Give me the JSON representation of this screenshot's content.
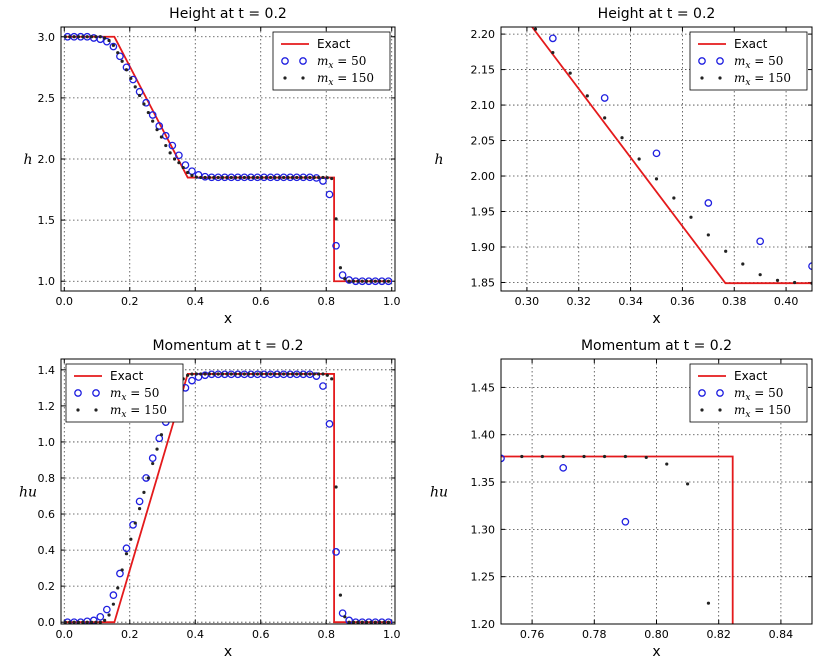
{
  "chart_data": [
    {
      "id": "height-full",
      "type": "line",
      "title": "Height at t = 0.2",
      "xlabel": "x",
      "ylabel": "h",
      "xlim": [
        -0.01,
        1.01
      ],
      "ylim": [
        0.92,
        3.08
      ],
      "xticks": [
        0.0,
        0.2,
        0.4,
        0.6,
        0.8,
        1.0
      ],
      "yticks": [
        1.0,
        1.5,
        2.0,
        2.5,
        3.0
      ],
      "xtick_decimals": 1,
      "ytick_decimals": 1,
      "grid": true,
      "legend_position": "top-right",
      "series": [
        {
          "name": "Exact",
          "style": "line",
          "color": "#e41a1c",
          "x": [
            0.0,
            0.153,
            0.377,
            0.824,
            0.824,
            1.0
          ],
          "y": [
            3.0,
            3.0,
            1.848,
            1.848,
            1.0,
            1.0
          ]
        },
        {
          "name": "m_x = 50",
          "style": "circle",
          "color": "#1f1fe0",
          "x": [
            0.01,
            0.03,
            0.05,
            0.07,
            0.09,
            0.11,
            0.13,
            0.15,
            0.17,
            0.19,
            0.21,
            0.23,
            0.25,
            0.27,
            0.29,
            0.31,
            0.33,
            0.35,
            0.37,
            0.39,
            0.41,
            0.43,
            0.45,
            0.47,
            0.49,
            0.51,
            0.53,
            0.55,
            0.57,
            0.59,
            0.61,
            0.63,
            0.65,
            0.67,
            0.69,
            0.71,
            0.73,
            0.75,
            0.77,
            0.79,
            0.81,
            0.83,
            0.85,
            0.87,
            0.89,
            0.91,
            0.93,
            0.95,
            0.97,
            0.99
          ],
          "y": [
            3.0,
            3.0,
            3.0,
            3.0,
            2.99,
            2.98,
            2.96,
            2.92,
            2.84,
            2.75,
            2.65,
            2.55,
            2.46,
            2.36,
            2.27,
            2.19,
            2.11,
            2.03,
            1.95,
            1.9,
            1.87,
            1.855,
            1.85,
            1.85,
            1.85,
            1.85,
            1.85,
            1.85,
            1.85,
            1.85,
            1.85,
            1.85,
            1.85,
            1.85,
            1.85,
            1.85,
            1.85,
            1.85,
            1.845,
            1.82,
            1.71,
            1.29,
            1.05,
            1.01,
            1.0,
            1.0,
            1.0,
            1.0,
            1.0,
            1.0
          ]
        },
        {
          "name": "m_x = 150",
          "style": "dot",
          "color": "#222222",
          "x": [
            0.0033,
            0.0167,
            0.03,
            0.0433,
            0.0567,
            0.07,
            0.0833,
            0.0967,
            0.11,
            0.1233,
            0.1367,
            0.15,
            0.1633,
            0.1767,
            0.19,
            0.2033,
            0.2167,
            0.23,
            0.2433,
            0.2567,
            0.27,
            0.2833,
            0.2967,
            0.31,
            0.3233,
            0.3367,
            0.35,
            0.3633,
            0.3767,
            0.39,
            0.4033,
            0.4167,
            0.43,
            0.4433,
            0.4567,
            0.47,
            0.4833,
            0.4967,
            0.51,
            0.5233,
            0.5367,
            0.55,
            0.5633,
            0.5767,
            0.59,
            0.6033,
            0.6167,
            0.63,
            0.6433,
            0.6567,
            0.67,
            0.6833,
            0.6967,
            0.71,
            0.7233,
            0.7367,
            0.75,
            0.7633,
            0.7767,
            0.79,
            0.8033,
            0.8167,
            0.83,
            0.8433,
            0.8567,
            0.87,
            0.8833,
            0.8967,
            0.91,
            0.9233,
            0.9367,
            0.95,
            0.9633,
            0.9767,
            0.99
          ],
          "y": [
            3.0,
            3.0,
            3.0,
            3.0,
            3.0,
            3.0,
            3.0,
            3.0,
            3.0,
            2.99,
            2.97,
            2.93,
            2.87,
            2.8,
            2.73,
            2.66,
            2.59,
            2.52,
            2.45,
            2.38,
            2.31,
            2.24,
            2.18,
            2.11,
            2.05,
            2.0,
            1.97,
            1.93,
            1.89,
            1.865,
            1.852,
            1.849,
            1.849,
            1.849,
            1.849,
            1.849,
            1.849,
            1.849,
            1.849,
            1.849,
            1.849,
            1.849,
            1.849,
            1.849,
            1.849,
            1.849,
            1.849,
            1.849,
            1.849,
            1.849,
            1.849,
            1.849,
            1.849,
            1.849,
            1.849,
            1.849,
            1.849,
            1.849,
            1.849,
            1.849,
            1.847,
            1.84,
            1.51,
            1.11,
            1.02,
            1.0,
            1.0,
            1.0,
            1.0,
            1.0,
            1.0,
            1.0,
            1.0,
            1.0,
            1.0
          ]
        }
      ]
    },
    {
      "id": "height-zoom",
      "type": "line",
      "title": "Height at t = 0.2",
      "xlabel": "x",
      "ylabel": "h",
      "xlim": [
        0.29,
        0.41
      ],
      "ylim": [
        1.838,
        2.21
      ],
      "xticks": [
        0.3,
        0.32,
        0.34,
        0.36,
        0.38,
        0.4
      ],
      "yticks": [
        1.85,
        1.9,
        1.95,
        2.0,
        2.05,
        2.1,
        2.15,
        2.2
      ],
      "xtick_decimals": 2,
      "ytick_decimals": 2,
      "grid": true,
      "legend_position": "top-right",
      "series": [
        {
          "name": "Exact",
          "style": "line",
          "color": "#e41a1c",
          "x": [
            0.302,
            0.3766,
            0.41
          ],
          "y": [
            2.21,
            1.849,
            1.849
          ]
        },
        {
          "name": "m_x = 50",
          "style": "circle",
          "color": "#1f1fe0",
          "x": [
            0.31,
            0.33,
            0.35,
            0.37,
            0.39,
            0.41
          ],
          "y": [
            2.194,
            2.11,
            2.032,
            1.962,
            1.908,
            1.873
          ]
        },
        {
          "name": "m_x = 150",
          "style": "dot",
          "color": "#222222",
          "x": [
            0.3033,
            0.31,
            0.3167,
            0.3233,
            0.33,
            0.3367,
            0.3433,
            0.35,
            0.3567,
            0.3633,
            0.37,
            0.3767,
            0.3833,
            0.39,
            0.3967,
            0.4033,
            0.41
          ],
          "y": [
            2.207,
            2.174,
            2.145,
            2.113,
            2.082,
            2.054,
            2.024,
            1.996,
            1.969,
            1.942,
            1.917,
            1.894,
            1.876,
            1.861,
            1.853,
            1.85,
            1.849
          ]
        }
      ]
    },
    {
      "id": "momentum-full",
      "type": "line",
      "title": "Momentum at t = 0.2",
      "xlabel": "x",
      "ylabel": "hu",
      "xlim": [
        -0.01,
        1.01
      ],
      "ylim": [
        -0.01,
        1.46
      ],
      "xticks": [
        0.0,
        0.2,
        0.4,
        0.6,
        0.8,
        1.0
      ],
      "yticks": [
        0.0,
        0.2,
        0.4,
        0.6,
        0.8,
        1.0,
        1.2,
        1.4
      ],
      "xtick_decimals": 1,
      "ytick_decimals": 1,
      "grid": true,
      "legend_position": "top-left",
      "series": [
        {
          "name": "Exact",
          "style": "line",
          "color": "#e41a1c",
          "x": [
            0.0,
            0.153,
            0.377,
            0.824,
            0.824,
            1.0
          ],
          "y": [
            0.0,
            0.0,
            1.377,
            1.377,
            0.0,
            0.0
          ]
        },
        {
          "name": "m_x = 50",
          "style": "circle",
          "color": "#1f1fe0",
          "x": [
            0.01,
            0.03,
            0.05,
            0.07,
            0.09,
            0.11,
            0.13,
            0.15,
            0.17,
            0.19,
            0.21,
            0.23,
            0.25,
            0.27,
            0.29,
            0.31,
            0.33,
            0.35,
            0.37,
            0.39,
            0.41,
            0.43,
            0.45,
            0.47,
            0.49,
            0.51,
            0.53,
            0.55,
            0.57,
            0.59,
            0.61,
            0.63,
            0.65,
            0.67,
            0.69,
            0.71,
            0.73,
            0.75,
            0.77,
            0.79,
            0.81,
            0.83,
            0.85,
            0.87,
            0.89,
            0.91,
            0.93,
            0.95,
            0.97,
            0.99
          ],
          "y": [
            0.0,
            0.0,
            0.0,
            0.005,
            0.01,
            0.03,
            0.07,
            0.15,
            0.27,
            0.41,
            0.54,
            0.67,
            0.8,
            0.91,
            1.02,
            1.11,
            1.19,
            1.25,
            1.3,
            1.34,
            1.36,
            1.37,
            1.375,
            1.375,
            1.375,
            1.375,
            1.375,
            1.375,
            1.375,
            1.375,
            1.375,
            1.375,
            1.375,
            1.375,
            1.375,
            1.375,
            1.375,
            1.375,
            1.365,
            1.31,
            1.1,
            0.39,
            0.05,
            0.01,
            0.0,
            0.0,
            0.0,
            0.0,
            0.0,
            0.0
          ]
        },
        {
          "name": "m_x = 150",
          "style": "dot",
          "color": "#222222",
          "x": [
            0.0033,
            0.0167,
            0.03,
            0.0433,
            0.0567,
            0.07,
            0.0833,
            0.0967,
            0.11,
            0.1233,
            0.1367,
            0.15,
            0.1633,
            0.1767,
            0.19,
            0.2033,
            0.2167,
            0.23,
            0.2433,
            0.2567,
            0.27,
            0.2833,
            0.2967,
            0.31,
            0.3233,
            0.3367,
            0.35,
            0.3633,
            0.3767,
            0.39,
            0.4033,
            0.4167,
            0.43,
            0.4433,
            0.4567,
            0.47,
            0.4833,
            0.4967,
            0.51,
            0.5233,
            0.5367,
            0.55,
            0.5633,
            0.5767,
            0.59,
            0.6033,
            0.6167,
            0.63,
            0.6433,
            0.6567,
            0.67,
            0.6833,
            0.6967,
            0.71,
            0.7233,
            0.7367,
            0.75,
            0.7633,
            0.7767,
            0.79,
            0.8033,
            0.8167,
            0.83,
            0.8433,
            0.8567,
            0.87,
            0.8833,
            0.8967,
            0.91,
            0.9233,
            0.9367,
            0.95,
            0.9633,
            0.9767,
            0.99
          ],
          "y": [
            0.0,
            0.0,
            0.0,
            0.0,
            0.0,
            0.0,
            0.0,
            0.0,
            0.0,
            0.01,
            0.04,
            0.1,
            0.19,
            0.29,
            0.38,
            0.46,
            0.55,
            0.63,
            0.72,
            0.8,
            0.88,
            0.96,
            1.04,
            1.12,
            1.19,
            1.26,
            1.31,
            1.35,
            1.37,
            1.376,
            1.377,
            1.377,
            1.377,
            1.377,
            1.377,
            1.377,
            1.377,
            1.377,
            1.377,
            1.377,
            1.377,
            1.377,
            1.377,
            1.377,
            1.377,
            1.377,
            1.377,
            1.377,
            1.377,
            1.377,
            1.377,
            1.377,
            1.377,
            1.377,
            1.377,
            1.377,
            1.377,
            1.377,
            1.377,
            1.377,
            1.37,
            1.35,
            0.75,
            0.15,
            0.03,
            0.0,
            0.0,
            0.0,
            0.0,
            0.0,
            0.0,
            0.0,
            0.0,
            0.0,
            0.0
          ]
        }
      ]
    },
    {
      "id": "momentum-zoom",
      "type": "line",
      "title": "Momentum at t = 0.2",
      "xlabel": "x",
      "ylabel": "hu",
      "xlim": [
        0.75,
        0.85
      ],
      "ylim": [
        1.2,
        1.48
      ],
      "xticks": [
        0.76,
        0.78,
        0.8,
        0.82,
        0.84
      ],
      "yticks": [
        1.2,
        1.25,
        1.3,
        1.35,
        1.4,
        1.45
      ],
      "xtick_decimals": 2,
      "ytick_decimals": 2,
      "grid": true,
      "legend_position": "top-right",
      "series": [
        {
          "name": "Exact",
          "style": "line",
          "color": "#e41a1c",
          "x": [
            0.75,
            0.8245,
            0.8245
          ],
          "y": [
            1.377,
            1.377,
            1.2
          ]
        },
        {
          "name": "m_x = 50",
          "style": "circle",
          "color": "#1f1fe0",
          "x": [
            0.75,
            0.77,
            0.79
          ],
          "y": [
            1.375,
            1.365,
            1.308
          ]
        },
        {
          "name": "m_x = 150",
          "style": "dot",
          "color": "#222222",
          "x": [
            0.7567,
            0.7633,
            0.77,
            0.7767,
            0.7833,
            0.79,
            0.7967,
            0.8033,
            0.81,
            0.8167
          ],
          "y": [
            1.377,
            1.377,
            1.377,
            1.377,
            1.377,
            1.377,
            1.376,
            1.369,
            1.348,
            1.222
          ]
        }
      ]
    }
  ]
}
